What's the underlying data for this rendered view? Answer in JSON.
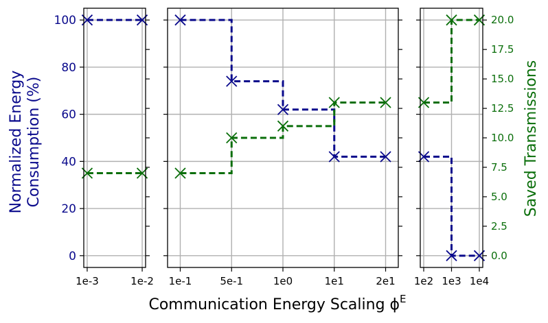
{
  "chart_data": {
    "type": "line",
    "step_style": "post",
    "xlabel": "Communication Energy Scaling ϕ",
    "xlabel_superscript": "E",
    "ylabel_left_line1": "Normalized Energy",
    "ylabel_left_line2": "Consumption (%)",
    "ylabel_right": "Saved Transmissions",
    "ylim_left": [
      -5,
      105
    ],
    "ylim_right": [
      -1.0,
      21.0
    ],
    "yticks_left": [
      "0",
      "20",
      "40",
      "60",
      "80",
      "100"
    ],
    "yticks_right": [
      "0.0",
      "2.5",
      "5.0",
      "7.5",
      "10.0",
      "12.5",
      "15.0",
      "17.5",
      "20.0"
    ],
    "grid": true,
    "colors": {
      "energy": "#0a0a8c",
      "saved": "#0a6e0a",
      "grid": "#b0b0b0"
    },
    "panels": [
      {
        "x": [
          "1e-3",
          "1e-2"
        ],
        "series": [
          {
            "axis": "left",
            "values": [
              100,
              100
            ]
          },
          {
            "axis": "right",
            "values": [
              7,
              7
            ]
          }
        ]
      },
      {
        "x": [
          "1e-1",
          "5e-1",
          "1e0",
          "1e1",
          "2e1"
        ],
        "series": [
          {
            "axis": "left",
            "values": [
              100,
              74,
              62,
              42,
              42
            ]
          },
          {
            "axis": "right",
            "values": [
              7,
              10,
              11,
              13,
              13
            ]
          }
        ]
      },
      {
        "x": [
          "1e2",
          "1e3",
          "1e4"
        ],
        "series": [
          {
            "axis": "left",
            "values": [
              42,
              0,
              0
            ]
          },
          {
            "axis": "right",
            "values": [
              13,
              20,
              20
            ]
          }
        ]
      }
    ]
  }
}
